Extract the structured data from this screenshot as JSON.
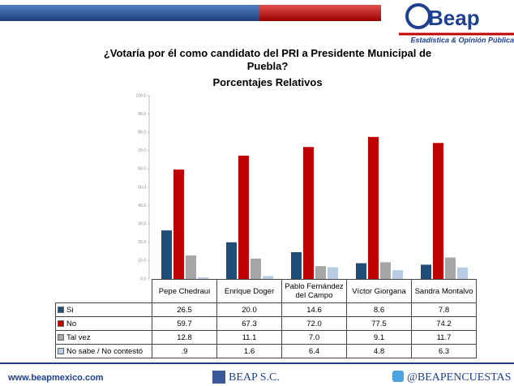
{
  "header": {
    "logo": "Beap",
    "tagline": "Estadística & Opinión Pública"
  },
  "chart_data": {
    "type": "bar",
    "title": "¿Votaría por él como candidato del PRI a Presidente Municipal de Puebla?",
    "subtitle": "Porcentajes Relativos",
    "categories": [
      "Pepe Chedraui",
      "Enrique Doger",
      "Pablo Fernández del Campo",
      "Víctor Giorgana",
      "Sandra Montalvo"
    ],
    "series": [
      {
        "name": "Si",
        "color": "#1f4e79",
        "values": [
          26.5,
          20.0,
          14.6,
          8.6,
          7.8
        ],
        "value_labels": [
          "26.5",
          "20.0",
          "14.6",
          "8.6",
          "7.8"
        ]
      },
      {
        "name": "No",
        "color": "#c00000",
        "values": [
          59.7,
          67.3,
          72.0,
          77.5,
          74.2
        ],
        "value_labels": [
          "59.7",
          "67.3",
          "72.0",
          "77.5",
          "74.2"
        ]
      },
      {
        "name": "Tal vez",
        "color": "#a6a6a6",
        "values": [
          12.8,
          11.1,
          7.0,
          9.1,
          11.7
        ],
        "value_labels": [
          "12.8",
          "11.1",
          "7.0",
          "9.1",
          "11.7"
        ]
      },
      {
        "name": "No sabe / No contestó",
        "color": "#b8cce4",
        "values": [
          0.9,
          1.6,
          6.4,
          4.8,
          6.3
        ],
        "value_labels": [
          ".9",
          "1.6",
          "6.4",
          "4.8",
          "6.3"
        ]
      }
    ],
    "ylim": [
      0,
      100
    ],
    "yticks": [
      {
        "value": 0,
        "label": "0.0"
      },
      {
        "value": 10,
        "label": "10.0"
      },
      {
        "value": 20,
        "label": "20.0"
      },
      {
        "value": 30,
        "label": "30.0"
      },
      {
        "value": 40,
        "label": "40.0"
      },
      {
        "value": 50,
        "label": "50.0"
      },
      {
        "value": 60,
        "label": "60.0"
      },
      {
        "value": 70,
        "label": "70.0"
      },
      {
        "value": 80,
        "label": "80.0"
      },
      {
        "value": 90,
        "label": "90.0"
      },
      {
        "value": 100,
        "label": "100.0"
      }
    ],
    "grid": false
  },
  "footer": {
    "website": "www.beapmexico.com",
    "company": "BEAP S.C.",
    "twitter": "@BEAPENCUESTAS"
  }
}
